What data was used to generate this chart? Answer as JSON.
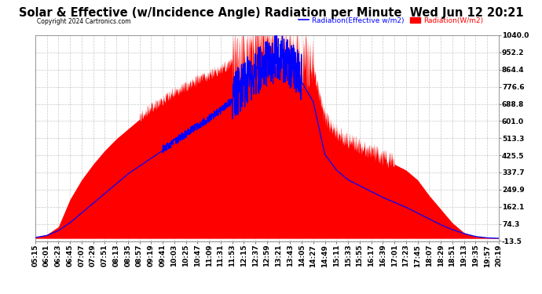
{
  "title": "Solar & Effective (w/Incidence Angle) Radiation per Minute  Wed Jun 12 20:21",
  "copyright": "Copyright 2024 Cartronics.com",
  "legend_effective": "Radiation(Effective w/m2)",
  "legend_radiation": "Radiation(W/m2)",
  "yticks": [
    1040.0,
    952.2,
    864.4,
    776.6,
    688.8,
    601.0,
    513.3,
    425.5,
    337.7,
    249.9,
    162.1,
    74.3,
    -13.5
  ],
  "ymin": -13.5,
  "ymax": 1040.0,
  "xtick_labels": [
    "05:15",
    "06:01",
    "06:23",
    "06:45",
    "07:07",
    "07:29",
    "07:51",
    "08:13",
    "08:35",
    "08:57",
    "09:19",
    "09:41",
    "10:03",
    "10:25",
    "10:47",
    "11:09",
    "11:31",
    "11:53",
    "12:15",
    "12:37",
    "12:59",
    "13:21",
    "13:43",
    "14:05",
    "14:27",
    "14:49",
    "15:11",
    "15:33",
    "15:55",
    "16:17",
    "16:39",
    "17:01",
    "17:23",
    "17:45",
    "18:07",
    "18:29",
    "18:51",
    "19:13",
    "19:35",
    "19:57",
    "20:19"
  ],
  "background_color": "#ffffff",
  "grid_color": "#c8c8c8",
  "red_color": "#ff0000",
  "blue_color": "#0000ff",
  "title_color": "#000000",
  "title_fontsize": 10.5,
  "tick_fontsize": 6.5
}
